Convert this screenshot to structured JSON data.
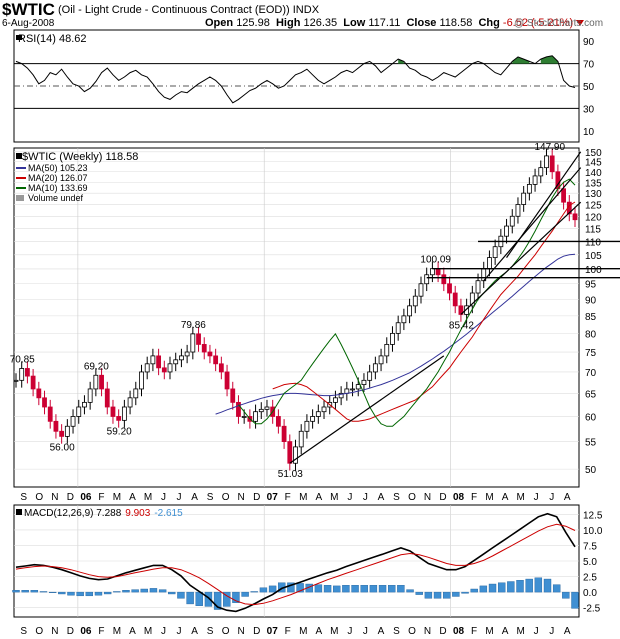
{
  "header": {
    "symbol": "$WTIC",
    "description": "(Oil - Light Crude - Continuous Contract (EOD))  INDX",
    "date": "6-Aug-2008",
    "open_label": "Open",
    "open": "125.98",
    "high_label": "High",
    "high": "126.35",
    "low_label": "Low",
    "low": "117.11",
    "close_label": "Close",
    "close": "118.58",
    "chg_label": "Chg",
    "chg": "-6.52 (-5.21%)",
    "credit": "@ StockCharts.com"
  },
  "colors": {
    "price_up": "#000000",
    "price_down": "#cc0033",
    "ma50": "#333399",
    "ma20": "#cc0000",
    "ma10": "#006600",
    "rsi_fill": "#2e7d32",
    "macd_line": "#000000",
    "signal_line": "#cc0000",
    "histogram": "#3f8fd2"
  },
  "chart_data": [
    {
      "type": "line",
      "title": "RSI(14) 48.62",
      "series": [
        {
          "name": "RSI(14)",
          "values": [
            72,
            70,
            66,
            60,
            52,
            55,
            62,
            60,
            65,
            58,
            52,
            50,
            45,
            48,
            54,
            62,
            66,
            60,
            55,
            58,
            62,
            64,
            60,
            58,
            52,
            45,
            40,
            38,
            42,
            45,
            44,
            48,
            52,
            55,
            58,
            55,
            50,
            42,
            35,
            38,
            42,
            46,
            48,
            52,
            55,
            52,
            48,
            50,
            55,
            60,
            62,
            65,
            60,
            55,
            52,
            55,
            58,
            62,
            64,
            62,
            66,
            70,
            72,
            68,
            62,
            66,
            70,
            74,
            72,
            66,
            64,
            60,
            58,
            55,
            58,
            62,
            60,
            58,
            62,
            66,
            70,
            72,
            70,
            66,
            62,
            60,
            66,
            72,
            76,
            74,
            72,
            70,
            74,
            76,
            77,
            72,
            55,
            50,
            48.62
          ]
        }
      ],
      "ylim": [
        0,
        100
      ],
      "yticks": [
        10,
        30,
        50,
        70,
        90
      ],
      "reference_lines": [
        30,
        50,
        70
      ]
    },
    {
      "type": "line",
      "title": "$WTIC (Weekly) 118.58",
      "legend": [
        {
          "label": "MA(50) 105.23",
          "color": "#333399"
        },
        {
          "label": "MA(20) 126.07",
          "color": "#cc0000"
        },
        {
          "label": "MA(10) 133.69",
          "color": "#006600"
        },
        {
          "label": "Volume undef",
          "color": "#999999"
        }
      ],
      "x_labels": [
        "S",
        "O",
        "N",
        "D",
        "06",
        "F",
        "M",
        "A",
        "M",
        "J",
        "J",
        "A",
        "S",
        "O",
        "N",
        "D",
        "07",
        "F",
        "M",
        "A",
        "M",
        "J",
        "J",
        "A",
        "S",
        "O",
        "N",
        "D",
        "08",
        "F",
        "M",
        "A",
        "M",
        "J",
        "J",
        "A"
      ],
      "series": [
        {
          "name": "WTIC",
          "values": [
            68.0,
            70.85,
            69.0,
            66.0,
            64.0,
            62.0,
            59.0,
            57.0,
            56.0,
            58.0,
            60.0,
            62.0,
            63.0,
            66.0,
            69.2,
            66.0,
            62.0,
            60.0,
            59.2,
            62.0,
            64.0,
            66.0,
            70.0,
            72.0,
            74.0,
            71.0,
            70.0,
            72.0,
            73.0,
            74.0,
            75.0,
            79.86,
            77.0,
            75.0,
            74.0,
            72.0,
            70.0,
            66.0,
            63.0,
            60.0,
            60.0,
            59.0,
            61.0,
            61.5,
            62.0,
            60.0,
            58.0,
            55.0,
            51.03,
            54.0,
            57.0,
            59.0,
            60.0,
            61.0,
            62.0,
            63.0,
            64.0,
            65.0,
            66.0,
            66.0,
            67.0,
            68.0,
            70.0,
            72.0,
            74.0,
            77.0,
            80.0,
            83.0,
            85.0,
            88.0,
            91.0,
            95.0,
            98.0,
            100.09,
            98.0,
            95.0,
            92.0,
            88.0,
            85.42,
            88.0,
            92.0,
            96.0,
            100.0,
            104.0,
            108.0,
            112.0,
            116.0,
            120.0,
            125.0,
            130.0,
            134.0,
            138.0,
            142.0,
            147.9,
            140.0,
            132.0,
            126.0,
            121.0,
            118.58
          ]
        },
        {
          "name": "MA(50)",
          "values": [
            60.5,
            60.9,
            61.4,
            61.8,
            62.3,
            62.7,
            63.1,
            63.5,
            63.9,
            64.2,
            64.5,
            64.7,
            64.9,
            65.0,
            65.0,
            64.9,
            64.8,
            64.7,
            64.6,
            64.5,
            64.5,
            64.6,
            64.8,
            65.0,
            65.2,
            65.5,
            65.8,
            66.2,
            66.6,
            67.0,
            67.5,
            68.0,
            68.6,
            69.2,
            69.8,
            70.6,
            71.4,
            72.3,
            73.2,
            74.2,
            75.2,
            76.3,
            77.4,
            78.6,
            79.8,
            81.1,
            82.4,
            83.8,
            85.2,
            86.6,
            88.0,
            89.5,
            91.0,
            92.6,
            94.2,
            95.8,
            97.4,
            99.0,
            100.6,
            102.0,
            103.5,
            104.5,
            105.0,
            105.23
          ]
        },
        {
          "name": "MA(20)",
          "values": [
            66,
            66.5,
            67,
            67.2,
            67.3,
            67,
            66.5,
            65.5,
            64.5,
            63.5,
            62.5,
            61.5,
            60.5,
            59.5,
            59,
            59,
            59.2,
            59.5,
            60,
            60.5,
            61,
            61.5,
            62,
            62.5,
            63,
            63.5,
            64.5,
            65.5,
            66.5,
            68,
            69.5,
            71,
            73,
            75,
            77,
            79,
            81.5,
            84,
            86.5,
            89,
            91.5,
            93.5,
            95.5,
            97.5,
            100,
            102.5,
            105,
            108,
            111,
            114,
            117.5,
            121,
            124.5,
            126.07
          ]
        },
        {
          "name": "MA(10)",
          "values": [
            62.5,
            61,
            59.5,
            58.5,
            58.5,
            59.5,
            61,
            63,
            65,
            66,
            67,
            68,
            70,
            72,
            74,
            76,
            78,
            79.86,
            77,
            74,
            71,
            68,
            65,
            62,
            60,
            58.5,
            58,
            58,
            59,
            60,
            61.5,
            63,
            64.5,
            66,
            68,
            70,
            72.5,
            75,
            78,
            81,
            84,
            87,
            90,
            92,
            94,
            96,
            97.5,
            99,
            101,
            103.5,
            106.5,
            110,
            114,
            118.5,
            123,
            128,
            132,
            135,
            136.5,
            133.69
          ]
        }
      ],
      "annotations": [
        "70.85",
        "69.20",
        "59.20",
        "56.00",
        "79.86",
        "51.03",
        "100.09",
        "85.42",
        "147.90"
      ],
      "y_scale": "log",
      "ylim": [
        47,
        152
      ],
      "yticks": [
        50,
        55,
        60,
        65,
        70,
        75,
        80,
        85,
        90,
        95,
        100,
        105,
        110,
        115,
        120,
        125,
        130,
        135,
        140,
        145,
        150
      ]
    },
    {
      "type": "line",
      "title": "MACD(12,26,9) 7.288, 9.903, -2.615",
      "series": [
        {
          "name": "MACD(12,26,9) 7.288",
          "values": [
            4,
            4.2,
            4.4,
            4.3,
            4,
            3.6,
            3.1,
            2.6,
            2.2,
            2.0,
            2.1,
            2.6,
            3.1,
            3.5,
            3.9,
            4.3,
            4.3,
            3.6,
            2.6,
            1.1,
            0.1,
            -0.9,
            -2.4,
            -2.9,
            -3.1,
            -2.6,
            -1.9,
            -1.1,
            -0.4,
            0.6,
            1.1,
            1.6,
            2.1,
            2.6,
            3.1,
            3.5,
            4.1,
            4.6,
            5.1,
            5.6,
            6.1,
            6.6,
            7.1,
            6.6,
            5.6,
            4.6,
            4.1,
            3.6,
            3.6,
            4.1,
            5.1,
            6.1,
            7.1,
            8.1,
            9.1,
            10.1,
            11.1,
            12.1,
            12.6,
            12.1,
            9.6,
            7.288
          ]
        },
        {
          "name": "9.903",
          "values": [
            3.7,
            3.9,
            4.1,
            4.2,
            4.1,
            3.9,
            3.6,
            3.2,
            2.8,
            2.5,
            2.4,
            2.5,
            2.8,
            3.1,
            3.4,
            3.7,
            3.9,
            3.9,
            3.6,
            3.0,
            2.3,
            1.4,
            0.4,
            -0.6,
            -1.4,
            -1.9,
            -2.0,
            -1.8,
            -1.4,
            -0.9,
            -0.4,
            0.2,
            0.8,
            1.4,
            2.0,
            2.5,
            3.0,
            3.5,
            4.0,
            4.5,
            5.0,
            5.5,
            6.0,
            6.2,
            6.0,
            5.6,
            5.1,
            4.6,
            4.3,
            4.3,
            4.6,
            5.1,
            5.8,
            6.6,
            7.4,
            8.2,
            9.0,
            9.8,
            10.5,
            10.9,
            10.6,
            9.903
          ]
        },
        {
          "name": "-2.615",
          "values": [
            0.3,
            0.3,
            0.3,
            0.1,
            -0.1,
            -0.3,
            -0.5,
            -0.6,
            -0.6,
            -0.5,
            -0.3,
            0.1,
            0.3,
            0.4,
            0.5,
            0.6,
            0.4,
            -0.3,
            -1.0,
            -1.9,
            -2.2,
            -2.3,
            -2.8,
            -2.3,
            -1.7,
            -0.7,
            0.1,
            0.7,
            1.0,
            1.5,
            1.5,
            1.4,
            1.3,
            1.2,
            1.1,
            1.0,
            1.1,
            1.1,
            1.1,
            1.1,
            1.1,
            1.1,
            1.1,
            0.4,
            -0.4,
            -1.0,
            -1.0,
            -1.0,
            -0.7,
            -0.2,
            0.5,
            1.0,
            1.3,
            1.5,
            1.7,
            1.9,
            2.1,
            2.3,
            2.1,
            1.2,
            -1.0,
            -2.615
          ]
        }
      ],
      "ylim": [
        -4,
        14
      ],
      "yticks": [
        -2.5,
        0.0,
        2.5,
        5.0,
        7.5,
        10.0,
        12.5
      ]
    }
  ]
}
